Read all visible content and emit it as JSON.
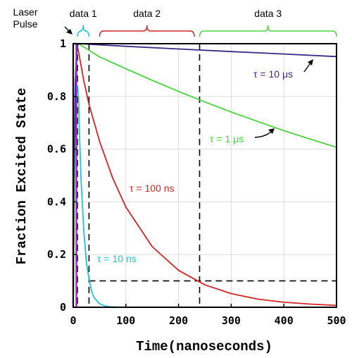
{
  "chart_data": {
    "type": "line",
    "title": "",
    "xlabel": "Time(nanoseconds)",
    "ylabel": "Fraction Excited State",
    "xlim": [
      0,
      500
    ],
    "ylim": [
      0,
      1
    ],
    "xticks": [
      "0",
      "100",
      "200",
      "300",
      "400",
      "500"
    ],
    "yticks": [
      "0",
      "0.2",
      "0.4",
      "0.6",
      "0.8",
      "1"
    ],
    "grid": true,
    "legend": "none",
    "series": [
      {
        "name": "τ = 10 ns",
        "tau_ns": 10,
        "color": "#22c4d4",
        "x": [
          0,
          3,
          6,
          8,
          10,
          12,
          15,
          20,
          25,
          30,
          35,
          40,
          50,
          60,
          70,
          80,
          100,
          150,
          200,
          300,
          370
        ],
        "y": [
          0,
          0.62,
          0.81,
          0.84,
          0.8,
          0.65,
          0.48,
          0.29,
          0.17,
          0.11,
          0.06,
          0.035,
          0.013,
          0.005,
          0.002,
          0.001,
          0,
          0,
          0,
          0,
          0
        ]
      },
      {
        "name": "τ = 100 ns",
        "tau_ns": 100,
        "color": "#d42424",
        "x": [
          0,
          2,
          4,
          6,
          8,
          10,
          20,
          30,
          50,
          75,
          100,
          150,
          200,
          250,
          300,
          350,
          400,
          450,
          500
        ],
        "y": [
          0,
          0.55,
          0.85,
          0.95,
          0.99,
          0.97,
          0.86,
          0.77,
          0.63,
          0.49,
          0.38,
          0.23,
          0.14,
          0.085,
          0.052,
          0.031,
          0.019,
          0.012,
          0.007
        ]
      },
      {
        "name": "τ = 1 μs",
        "tau_ns": 1000,
        "color": "#4cd440",
        "x": [
          0,
          2,
          4,
          6,
          8,
          10,
          50,
          100,
          150,
          200,
          250,
          300,
          350,
          400,
          450,
          500
        ],
        "y": [
          0,
          0.55,
          0.85,
          0.95,
          0.99,
          1.0,
          0.95,
          0.905,
          0.861,
          0.819,
          0.779,
          0.741,
          0.705,
          0.67,
          0.638,
          0.607
        ]
      },
      {
        "name": "τ = 10 μs",
        "tau_ns": 10000,
        "color": "#3a2a88",
        "x": [
          0,
          2,
          4,
          6,
          8,
          10,
          100,
          200,
          300,
          400,
          500
        ],
        "y": [
          0,
          0.55,
          0.85,
          0.95,
          0.99,
          1.0,
          0.99,
          0.98,
          0.97,
          0.961,
          0.951
        ]
      },
      {
        "name": "Laser Pulse",
        "color": "#a020c8",
        "x": [
          0,
          0,
          6,
          6
        ],
        "y": [
          0,
          1,
          1,
          0
        ]
      }
    ],
    "guide_lines": [
      {
        "orientation": "vertical",
        "x": 8
      },
      {
        "orientation": "vertical",
        "x": 30
      },
      {
        "orientation": "vertical",
        "x": 240
      },
      {
        "orientation": "horizontal",
        "y": 0.1,
        "x_range": [
          30,
          500
        ]
      }
    ],
    "annotations": [
      {
        "label": "Laser Pulse",
        "color": "#000000"
      },
      {
        "label": "data 1",
        "color": "#000000",
        "brace_color": "#22c4d4",
        "x_range": [
          8,
          30
        ]
      },
      {
        "label": "data 2",
        "color": "#000000",
        "brace_color": "#d42424",
        "x_range": [
          50,
          230
        ]
      },
      {
        "label": "data 3",
        "color": "#000000",
        "brace_color": "#4cd440",
        "x_range": [
          240,
          500
        ]
      }
    ]
  }
}
